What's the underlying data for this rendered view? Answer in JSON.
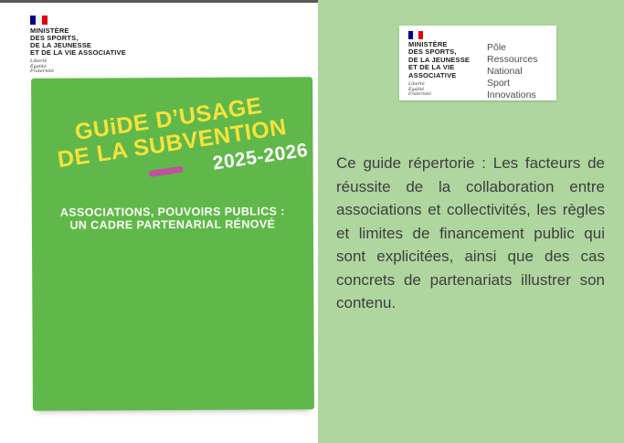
{
  "left": {
    "top_bar_color": "#5a5a5a",
    "logo": {
      "ministry_lines": [
        "MINISTÈRE",
        "DES SPORTS,",
        "DE LA JEUNESSE",
        "ET DE LA VIE ASSOCIATIVE"
      ],
      "motto_lines": [
        "Liberté",
        "Égalité",
        "Fraternité"
      ]
    },
    "cover": {
      "background": "#60b84a",
      "title_color": "#f6e23b",
      "edition_color": "#ffffff",
      "dash_color": "#bf529e",
      "title_line1": "GUiDE D’USAGE",
      "title_line2": "DE LA SUBVENTION",
      "edition": "2025-2026",
      "subtitle_line1": "ASSOCIATIONS, POUVOIRS PUBLICS :",
      "subtitle_line2": "UN CADRE PARTENARIAL RÉNOVÉ"
    }
  },
  "right": {
    "background": "#aed69e",
    "logo_box": {
      "ministry_lines": [
        "MINISTÈRE",
        "DES SPORTS,",
        "DE LA JEUNESSE",
        "ET DE LA VIE",
        "ASSOCIATIVE"
      ],
      "motto_lines": [
        "Liberté",
        "Égalité",
        "Fraternité"
      ],
      "org_lines": [
        "Pôle Ressources",
        "National",
        "Sport",
        "Innovations"
      ]
    },
    "description": "Ce guide répertorie : Les facteurs de réussite de la collaboration entre associations et collectivités, les règles et limites de financement public qui sont explicitées, ainsi que des cas concrets de partenariats illustrer son contenu."
  },
  "flag_colors": {
    "blue": "#000091",
    "white": "#f4f4f4",
    "red": "#e1000f"
  }
}
